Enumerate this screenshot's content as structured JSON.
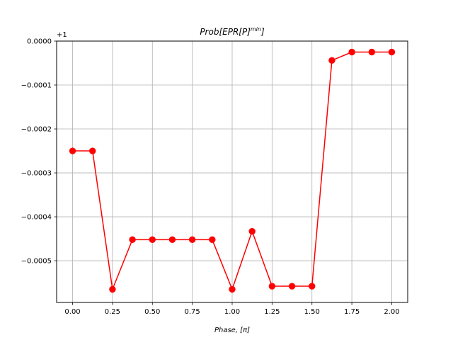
{
  "chart_data": {
    "type": "line",
    "title_base": "Prob[EPR[P]",
    "title_sup": "min",
    "title_tail": "]",
    "xlabel": "Phase, [π]",
    "ylabel": "",
    "offset_label": "+1",
    "xlim": [
      -0.1,
      2.1
    ],
    "ylim": [
      -0.000595,
      0.0
    ],
    "xticks": [
      0.0,
      0.25,
      0.5,
      0.75,
      1.0,
      1.25,
      1.5,
      1.75,
      2.0
    ],
    "xtick_labels": [
      "0.00",
      "0.25",
      "0.50",
      "0.75",
      "1.00",
      "1.25",
      "1.50",
      "1.75",
      "2.00"
    ],
    "yticks": [
      0.0,
      -0.0001,
      -0.0002,
      -0.0003,
      -0.0004,
      -0.0005
    ],
    "ytick_labels": [
      "0.0000",
      "−0.0001",
      "−0.0002",
      "−0.0003",
      "−0.0004",
      "−0.0005"
    ],
    "grid": true,
    "color": "#ff0000",
    "grid_color": "#b0b0b0",
    "series": [
      {
        "x": [
          0.0,
          0.125,
          0.25,
          0.375,
          0.5,
          0.625,
          0.75,
          0.875,
          1.0,
          1.125,
          1.25,
          1.375,
          1.5,
          1.625,
          1.75,
          1.875,
          2.0
        ],
        "y": [
          -0.00025,
          -0.00025,
          -0.000565,
          -0.000452,
          -0.000452,
          -0.000452,
          -0.000452,
          -0.000452,
          -0.000565,
          -0.000433,
          -0.000558,
          -0.000558,
          -0.000558,
          -4.4e-05,
          -2.5e-05,
          -2.5e-05,
          -2.5e-05
        ]
      }
    ]
  }
}
